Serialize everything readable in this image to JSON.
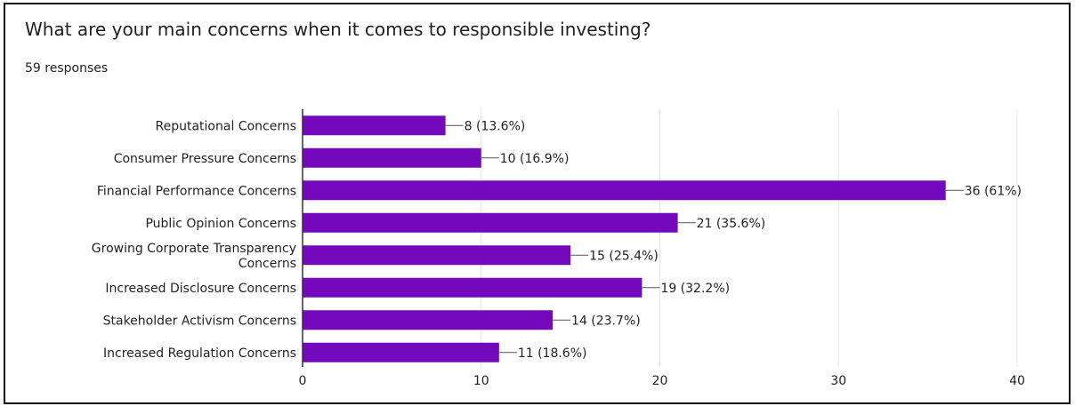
{
  "header": {
    "title": "What are your main concerns when it comes to responsible investing?",
    "responses": "59 responses"
  },
  "colors": {
    "bar": "#7408BC",
    "grid": "#E6E6E6",
    "axis": "#333333",
    "text": "#222222"
  },
  "chart_data": {
    "type": "bar",
    "orientation": "horizontal",
    "title": "What are your main concerns when it comes to responsible investing?",
    "subtitle": "59 responses",
    "categories": [
      [
        "Reputational Concerns"
      ],
      [
        "Consumer Pressure Concerns"
      ],
      [
        "Financial Performance Concerns"
      ],
      [
        "Public Opinion Concerns"
      ],
      [
        "Growing Corporate Transparency",
        "Concerns"
      ],
      [
        "Increased Disclosure Concerns"
      ],
      [
        "Stakeholder Activism Concerns"
      ],
      [
        "Increased Regulation Concerns"
      ]
    ],
    "values": [
      8,
      10,
      36,
      21,
      15,
      19,
      14,
      11
    ],
    "data_labels": [
      "8 (13.6%)",
      "10 (16.9%)",
      "36 (61%)",
      "21 (35.6%)",
      "15 (25.4%)",
      "19 (32.2%)",
      "14 (23.7%)",
      "11 (18.6%)"
    ],
    "xlim": [
      0,
      40
    ],
    "xticks": [
      0,
      10,
      20,
      30,
      40
    ],
    "xtick_labels": [
      "0",
      "10",
      "20",
      "30",
      "40"
    ],
    "grid": true,
    "legend": "none"
  }
}
